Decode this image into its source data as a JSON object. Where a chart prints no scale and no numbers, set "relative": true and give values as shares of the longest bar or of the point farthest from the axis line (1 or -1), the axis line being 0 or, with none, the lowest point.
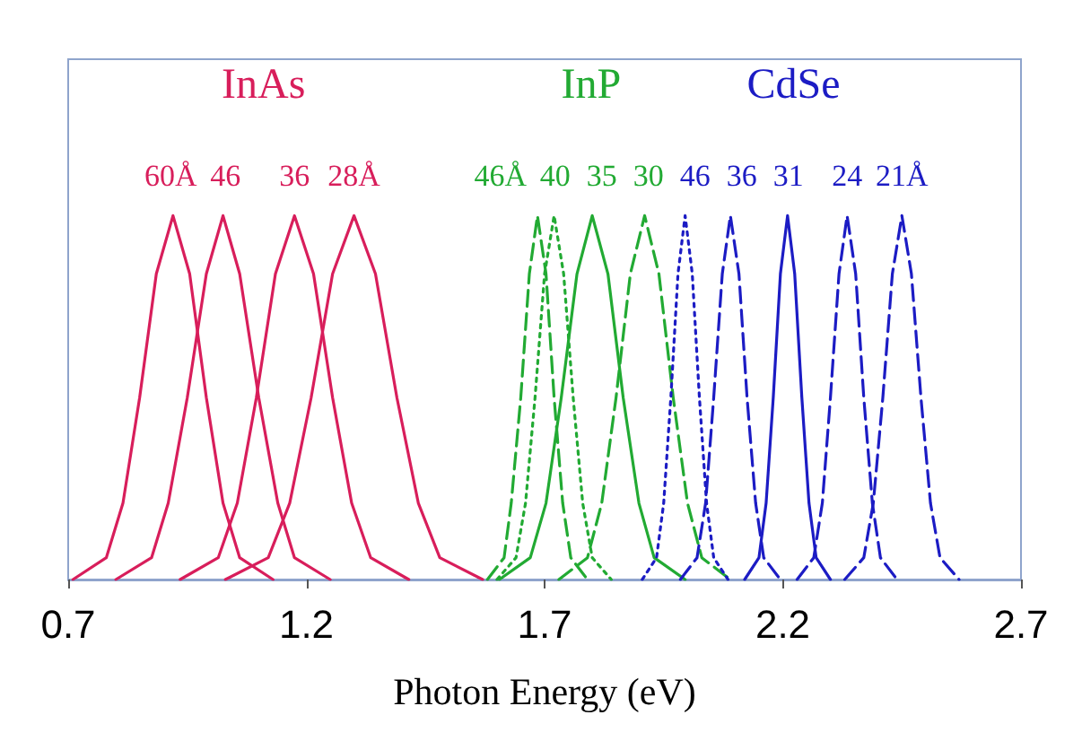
{
  "chart_data": {
    "type": "line",
    "relative": true,
    "xlabel": "Photon Energy (eV)",
    "xlim": [
      0.7,
      2.7
    ],
    "xticks": [
      0.7,
      1.2,
      1.7,
      2.2,
      2.7
    ],
    "grid": false,
    "marker": "none",
    "series": [
      {
        "name": "60Å",
        "color": "#d81e5b",
        "line_style": "solid",
        "x": [
          0.71,
          0.78,
          0.815,
          0.85,
          0.885,
          0.92,
          0.955,
          0.99,
          1.025,
          1.06,
          1.13
        ],
        "values": [
          0,
          0.06,
          0.21,
          0.5,
          0.84,
          1,
          0.84,
          0.5,
          0.21,
          0.06,
          0
        ]
      },
      {
        "name": "46",
        "color": "#d81e5b",
        "line_style": "solid",
        "x": [
          0.8,
          0.875,
          0.91,
          0.95,
          0.99,
          1.025,
          1.06,
          1.1,
          1.14,
          1.175,
          1.25
        ],
        "values": [
          0,
          0.06,
          0.21,
          0.5,
          0.84,
          1,
          0.84,
          0.5,
          0.21,
          0.06,
          0
        ]
      },
      {
        "name": "36",
        "color": "#d81e5b",
        "line_style": "solid",
        "x": [
          0.935,
          1.015,
          1.055,
          1.095,
          1.135,
          1.175,
          1.215,
          1.255,
          1.295,
          1.335,
          1.415
        ],
        "values": [
          0,
          0.06,
          0.21,
          0.5,
          0.84,
          1,
          0.84,
          0.5,
          0.21,
          0.06,
          0
        ]
      },
      {
        "name": "28Å",
        "color": "#d81e5b",
        "line_style": "solid",
        "x": [
          1.03,
          1.12,
          1.165,
          1.21,
          1.255,
          1.3,
          1.345,
          1.39,
          1.435,
          1.48,
          1.57
        ],
        "values": [
          0,
          0.06,
          0.21,
          0.5,
          0.84,
          1,
          0.84,
          0.5,
          0.21,
          0.06,
          0
        ]
      },
      {
        "name": "46Å",
        "color": "#22aa33",
        "line_style": "dashed",
        "x": [
          1.58,
          1.615,
          1.63,
          1.65,
          1.668,
          1.685,
          1.703,
          1.72,
          1.738,
          1.755,
          1.79
        ],
        "values": [
          0,
          0.06,
          0.21,
          0.5,
          0.84,
          1,
          0.84,
          0.5,
          0.21,
          0.06,
          0
        ]
      },
      {
        "name": "40",
        "color": "#22aa33",
        "line_style": "dotted",
        "x": [
          1.6,
          1.64,
          1.66,
          1.68,
          1.7,
          1.72,
          1.74,
          1.76,
          1.78,
          1.8,
          1.84
        ],
        "values": [
          0,
          0.06,
          0.21,
          0.5,
          0.84,
          1,
          0.84,
          0.5,
          0.21,
          0.06,
          0
        ]
      },
      {
        "name": "35",
        "color": "#22aa33",
        "line_style": "solid",
        "x": [
          1.605,
          1.67,
          1.703,
          1.735,
          1.768,
          1.8,
          1.833,
          1.865,
          1.898,
          1.93,
          1.995
        ],
        "values": [
          0,
          0.06,
          0.21,
          0.5,
          0.84,
          1,
          0.84,
          0.5,
          0.21,
          0.06,
          0
        ]
      },
      {
        "name": "30",
        "color": "#22aa33",
        "line_style": "dashed",
        "x": [
          1.73,
          1.79,
          1.82,
          1.85,
          1.88,
          1.91,
          1.94,
          1.97,
          2.0,
          2.03,
          2.09
        ],
        "values": [
          0,
          0.06,
          0.21,
          0.5,
          0.84,
          1,
          0.84,
          0.5,
          0.21,
          0.06,
          0
        ]
      },
      {
        "name": "46",
        "color": "#1c1cc4",
        "line_style": "dotted",
        "x": [
          1.905,
          1.935,
          1.95,
          1.965,
          1.98,
          1.995,
          2.01,
          2.025,
          2.04,
          2.055,
          2.085
        ],
        "values": [
          0,
          0.06,
          0.21,
          0.5,
          0.84,
          1,
          0.84,
          0.5,
          0.21,
          0.06,
          0
        ]
      },
      {
        "name": "36",
        "color": "#1c1cc4",
        "line_style": "dashed",
        "x": [
          1.985,
          2.02,
          2.038,
          2.055,
          2.073,
          2.09,
          2.108,
          2.125,
          2.143,
          2.16,
          2.195
        ],
        "values": [
          0,
          0.06,
          0.21,
          0.5,
          0.84,
          1,
          0.84,
          0.5,
          0.21,
          0.06,
          0
        ]
      },
      {
        "name": "31",
        "color": "#1c1cc4",
        "line_style": "solid",
        "x": [
          2.12,
          2.15,
          2.165,
          2.18,
          2.195,
          2.21,
          2.225,
          2.24,
          2.255,
          2.27,
          2.3
        ],
        "values": [
          0,
          0.06,
          0.21,
          0.5,
          0.84,
          1,
          0.84,
          0.5,
          0.21,
          0.06,
          0
        ]
      },
      {
        "name": "24",
        "color": "#1c1cc4",
        "line_style": "dashed",
        "x": [
          2.23,
          2.265,
          2.283,
          2.3,
          2.318,
          2.335,
          2.353,
          2.37,
          2.388,
          2.405,
          2.44
        ],
        "values": [
          0,
          0.06,
          0.21,
          0.5,
          0.84,
          1,
          0.84,
          0.5,
          0.21,
          0.06,
          0
        ]
      },
      {
        "name": "21Å",
        "color": "#1c1cc4",
        "line_style": "dashed",
        "x": [
          2.33,
          2.37,
          2.39,
          2.41,
          2.43,
          2.45,
          2.47,
          2.49,
          2.51,
          2.53,
          2.57
        ],
        "values": [
          0,
          0.06,
          0.21,
          0.5,
          0.84,
          1,
          0.84,
          0.5,
          0.21,
          0.06,
          0
        ]
      }
    ],
    "annotations": [
      "InAs",
      "InP",
      "CdSe"
    ]
  }
}
